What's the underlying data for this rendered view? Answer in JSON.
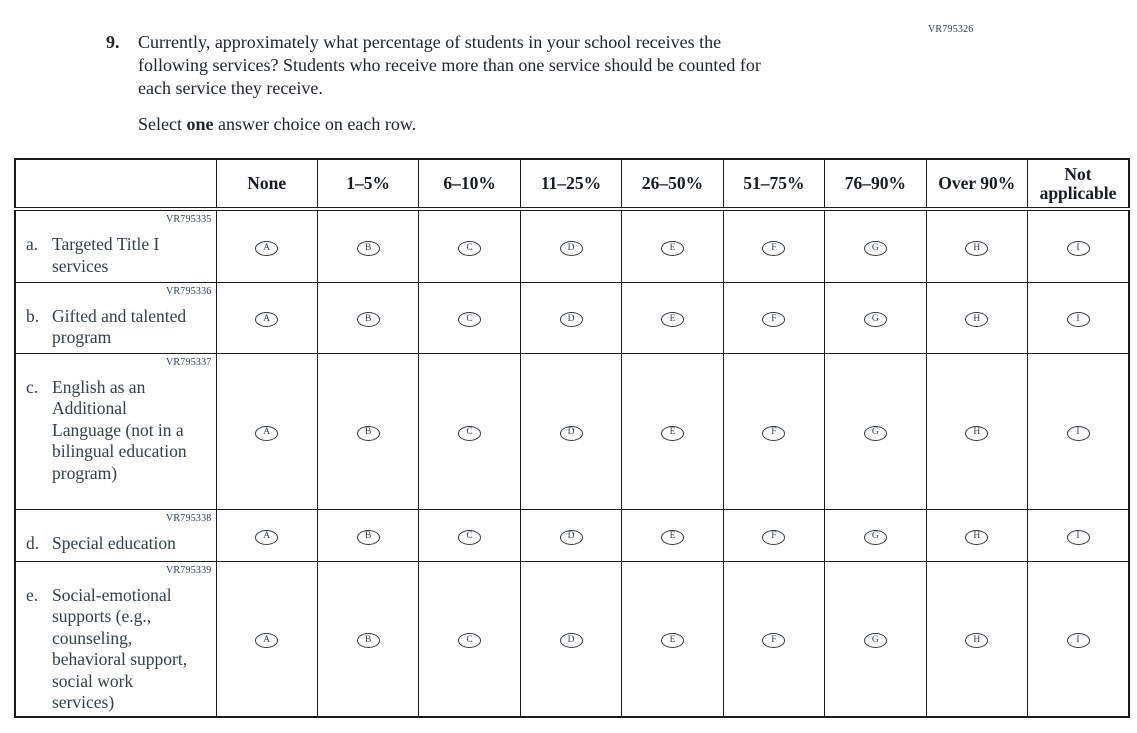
{
  "page_code": "VR795326",
  "question": {
    "number": "9.",
    "lines": [
      "Currently, approximately what percentage of students in your school receives the",
      "following services? Students who receive more than one service should be counted for",
      "each service they receive."
    ],
    "instruction": {
      "prefix": "Select ",
      "bold": "one",
      "suffix": " answer choice on each row."
    }
  },
  "table": {
    "columns": [
      "None",
      "1–5%",
      "6–10%",
      "11–25%",
      "26–50%",
      "51–75%",
      "76–90%",
      "Over 90%",
      "Not applicable"
    ],
    "option_letters": [
      "A",
      "B",
      "C",
      "D",
      "E",
      "F",
      "G",
      "H",
      "I"
    ],
    "rows": [
      {
        "code": "VR795335",
        "letter": "a.",
        "label": "Targeted Title I services"
      },
      {
        "code": "VR795336",
        "letter": "b.",
        "label": "Gifted and talented program"
      },
      {
        "code": "VR795337",
        "letter": "c.",
        "label": "English as an Additional Language (not in a bilingual education program)"
      },
      {
        "code": "VR795338",
        "letter": "d.",
        "label": "Special education"
      },
      {
        "code": "VR795339",
        "letter": "e.",
        "label": "Social-emotional supports (e.g., counseling, behavioral support, social work services)"
      }
    ]
  },
  "colors": {
    "code_text": "#2c3a60",
    "question_text": "#20262c",
    "label_text": "#333f4b",
    "header_text": "#171c22",
    "border": "#1b1b1b",
    "bubble_border": "#33383d"
  }
}
